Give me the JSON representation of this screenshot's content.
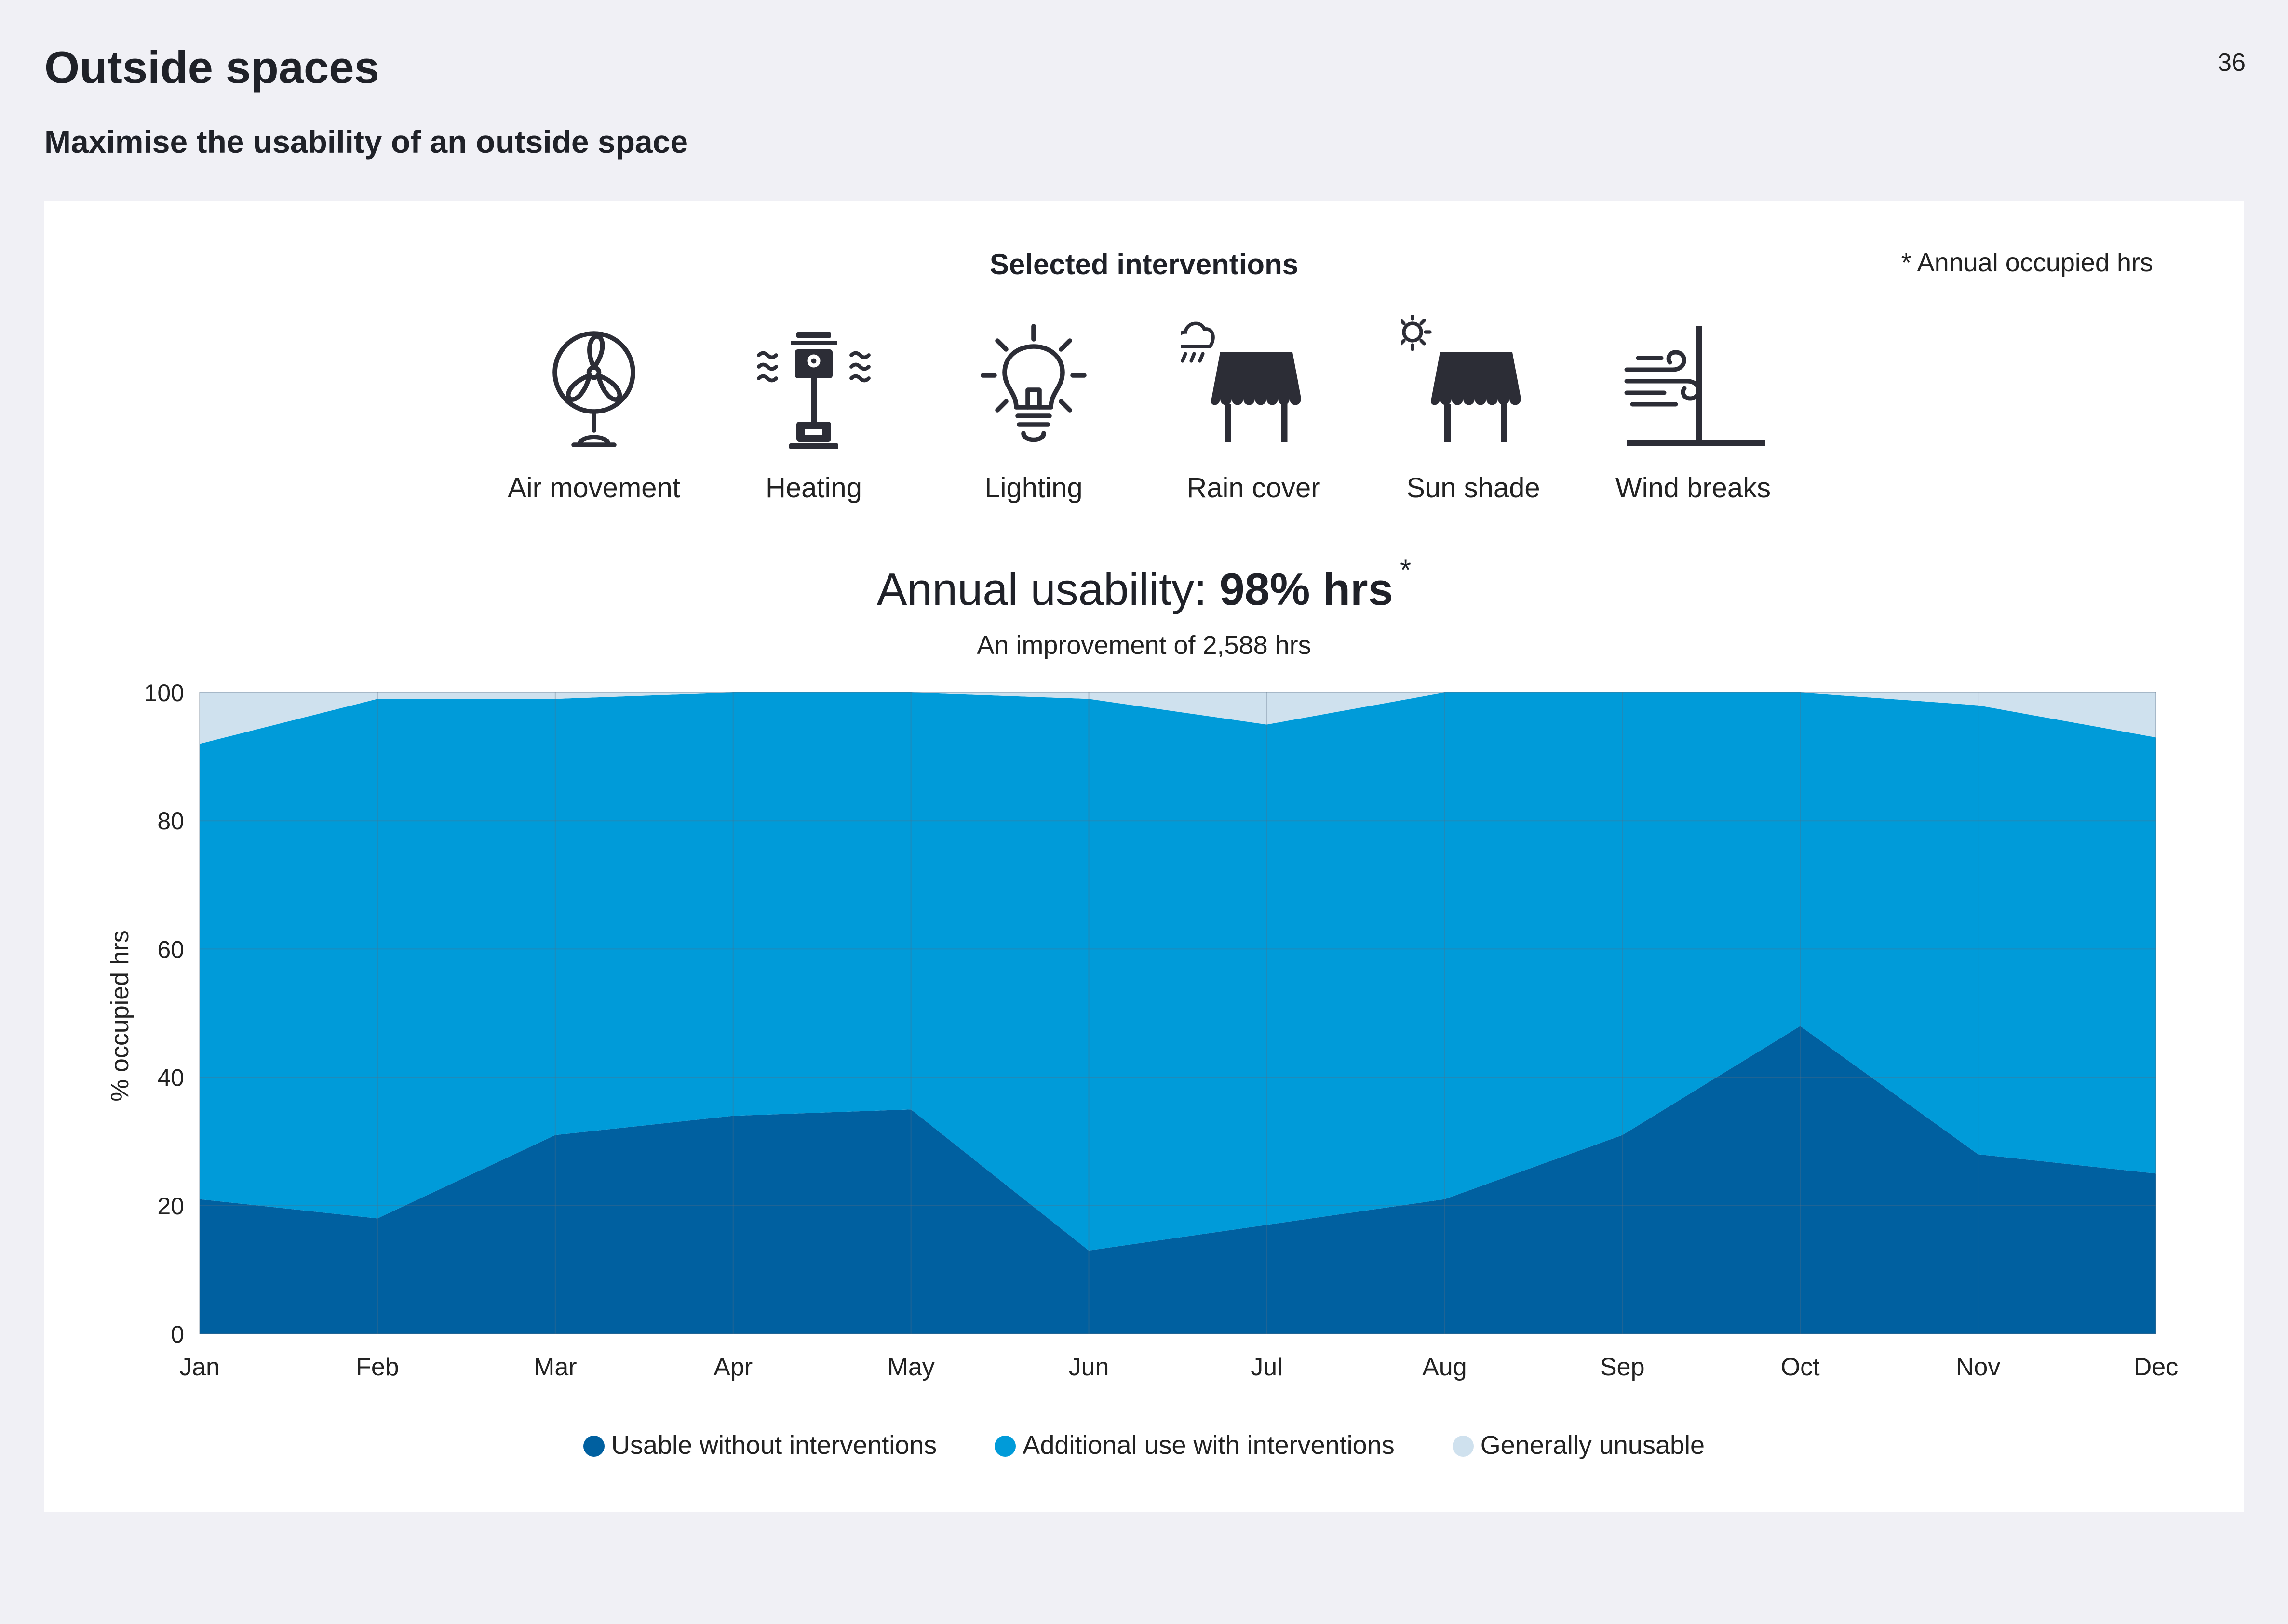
{
  "page": {
    "title": "Outside spaces",
    "number": "36",
    "subtitle": "Maximise the usability of an outside space"
  },
  "card": {
    "heading": "Selected interventions",
    "footnote": "* Annual occupied hrs",
    "interventions": [
      {
        "label": "Air movement",
        "icon": "fan-icon"
      },
      {
        "label": "Heating",
        "icon": "patio-heater-icon"
      },
      {
        "label": "Lighting",
        "icon": "lightbulb-icon"
      },
      {
        "label": "Rain cover",
        "icon": "rain-awning-icon"
      },
      {
        "label": "Sun shade",
        "icon": "sun-awning-icon"
      },
      {
        "label": "Wind breaks",
        "icon": "wind-break-icon"
      }
    ],
    "usability_prefix": "Annual usability: ",
    "usability_value": "98% hrs",
    "usability_star": "*",
    "improvement": "An improvement of 2,588 hrs"
  },
  "chart_data": {
    "type": "area",
    "stacked": true,
    "x": [
      "Jan",
      "Feb",
      "Mar",
      "Apr",
      "May",
      "Jun",
      "Jul",
      "Aug",
      "Sep",
      "Oct",
      "Nov",
      "Dec"
    ],
    "ylabel": "% occupied hrs",
    "ylim": [
      0,
      100
    ],
    "yticks": [
      0,
      20,
      40,
      60,
      80,
      100
    ],
    "grid": true,
    "legend_position": "bottom",
    "series": [
      {
        "name": "Usable without interventions",
        "color": "#0060a0",
        "values": [
          21,
          18,
          31,
          34,
          35,
          13,
          17,
          21,
          31,
          48,
          28,
          25
        ]
      },
      {
        "name": "Additional use with interventions",
        "color": "#009bd9",
        "values": [
          71,
          81,
          68,
          66,
          65,
          86,
          78,
          79,
          69,
          52,
          70,
          68
        ]
      },
      {
        "name": "Generally unusable",
        "color": "#cfe1ee",
        "values": [
          8,
          1,
          1,
          0,
          0,
          1,
          5,
          0,
          0,
          0,
          2,
          7
        ]
      }
    ]
  }
}
